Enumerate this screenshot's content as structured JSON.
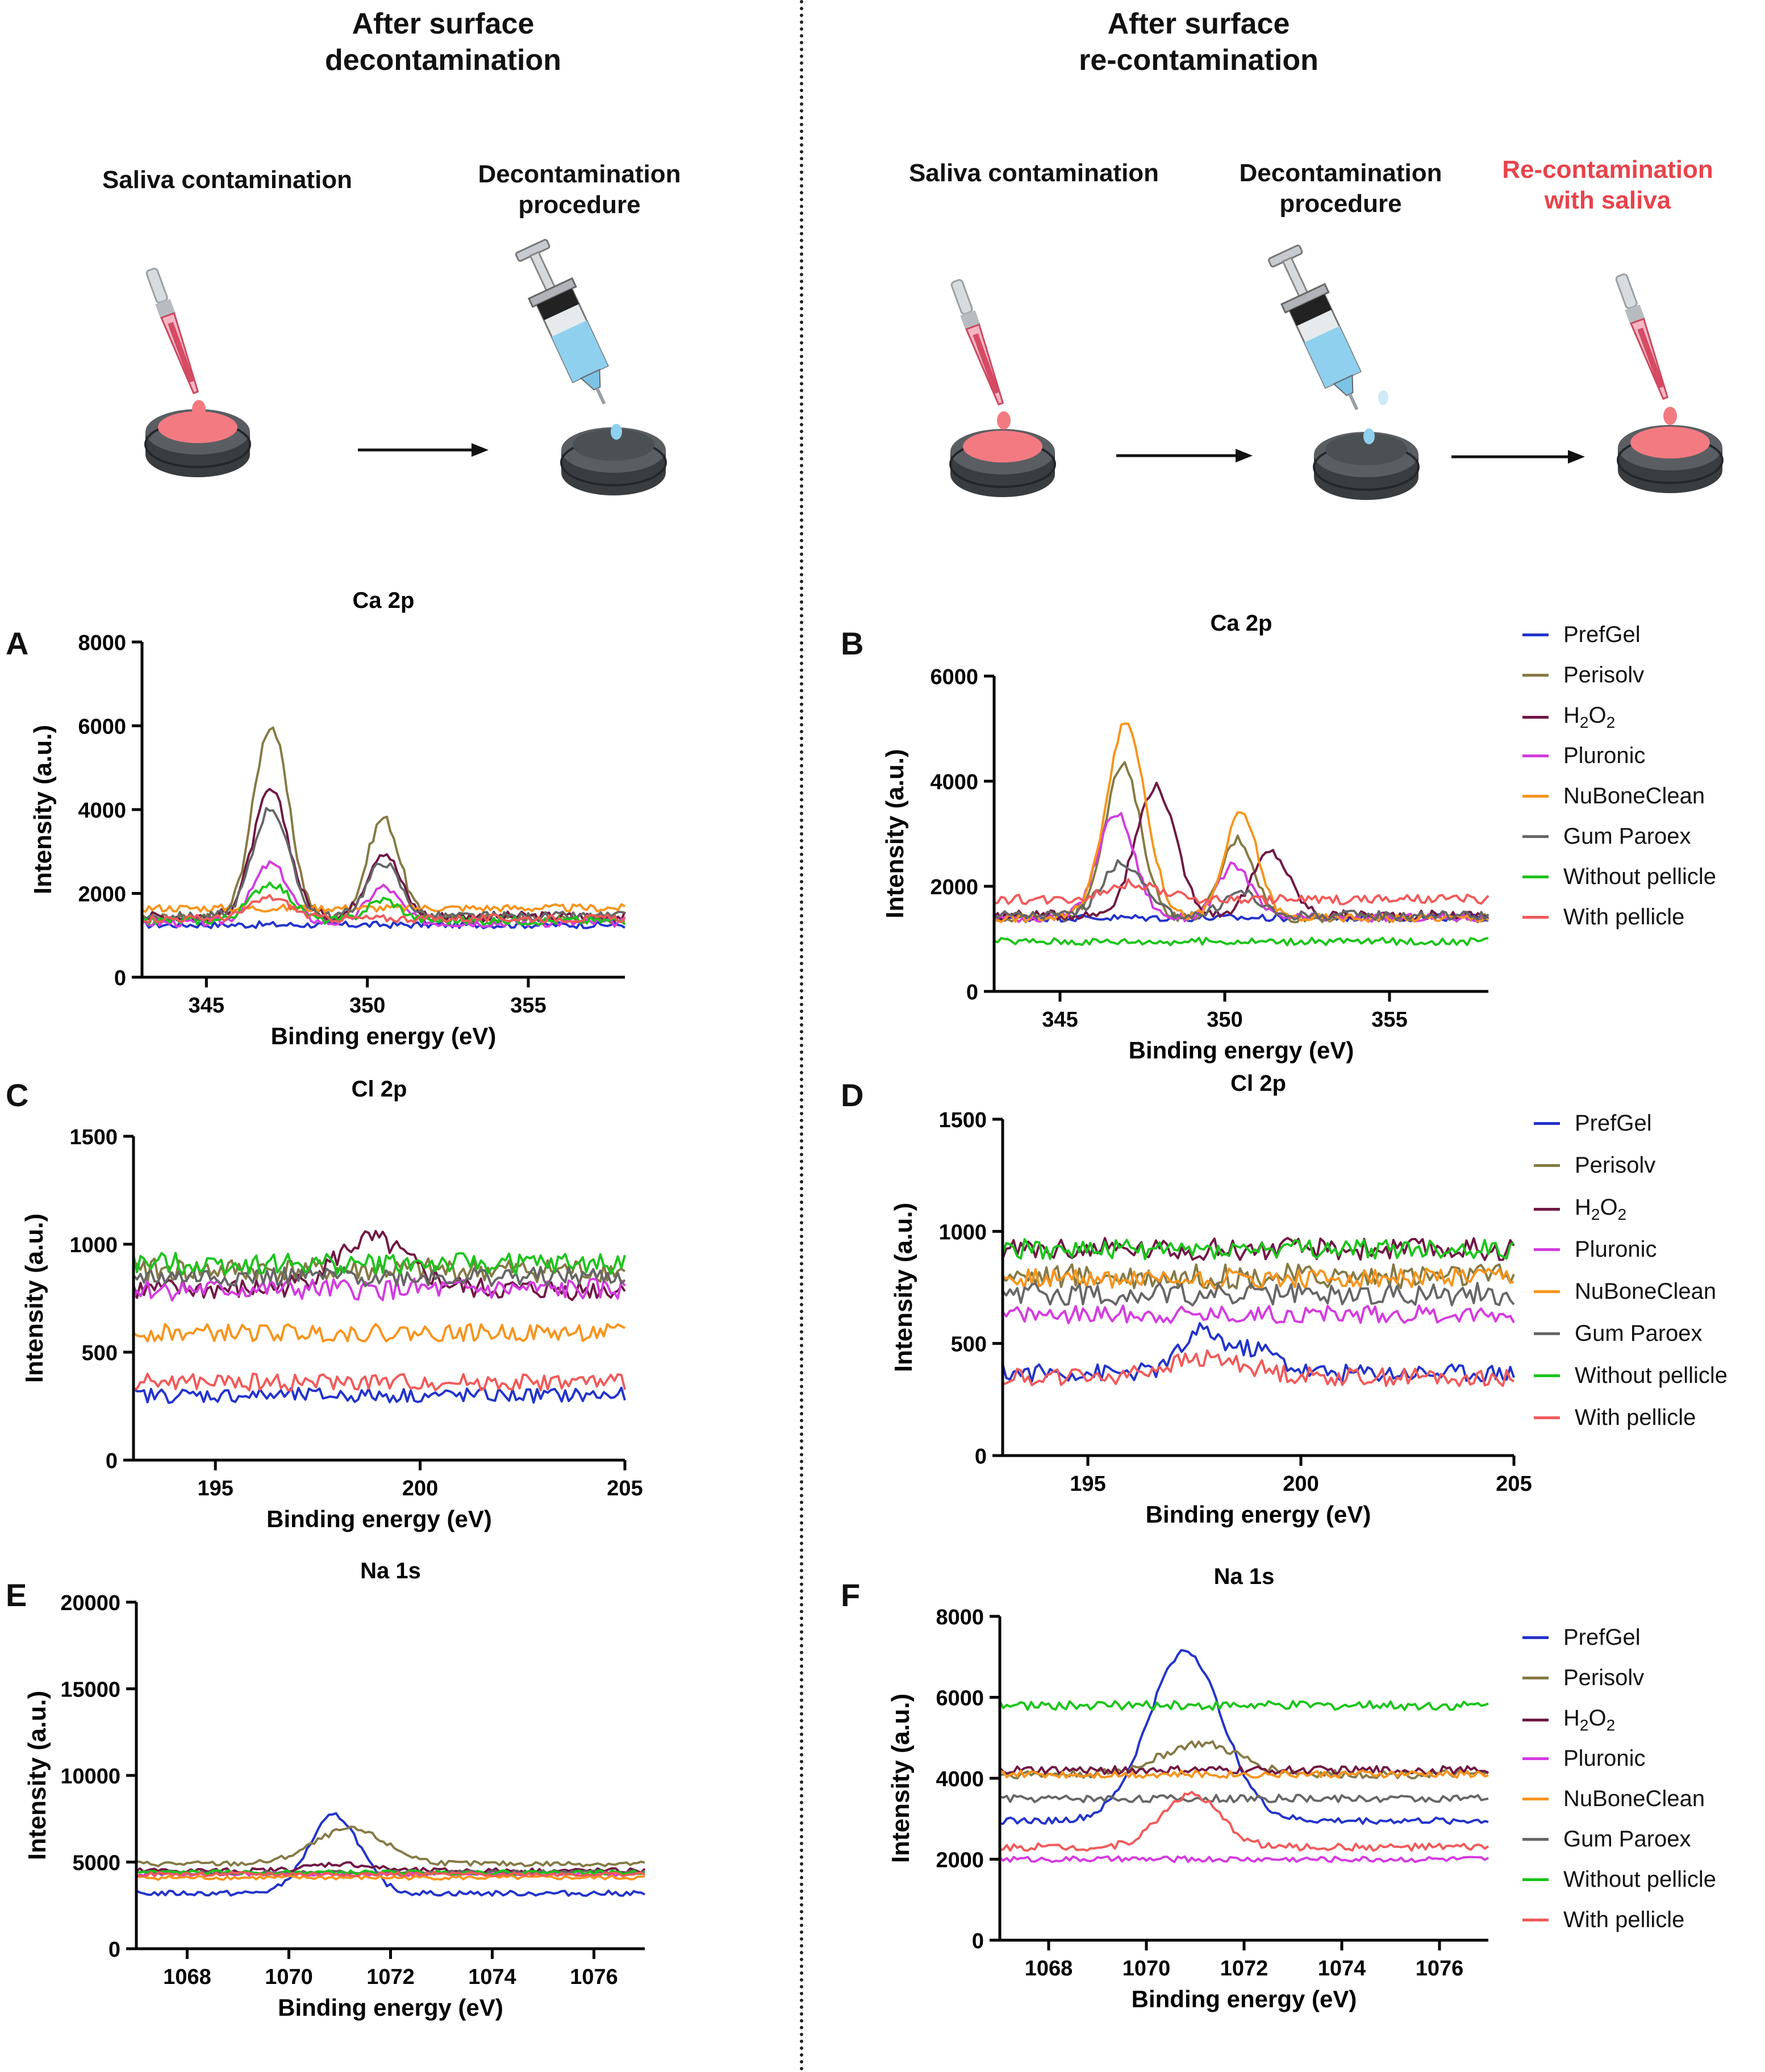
{
  "left_column": {
    "title_line1": "After surface",
    "title_line2": "decontamination",
    "steps": [
      {
        "line1": "Saliva contamination",
        "line2": ""
      },
      {
        "line1": "Decontamination",
        "line2": "procedure"
      }
    ]
  },
  "right_column": {
    "title_line1": "After surface",
    "title_line2": "re-contamination",
    "steps": [
      {
        "line1": "Saliva contamination",
        "line2": ""
      },
      {
        "line1": "Decontamination",
        "line2": "procedure"
      },
      {
        "line1": "Re-contamination",
        "line2": "with saliva"
      }
    ]
  },
  "legend": {
    "items": [
      {
        "label": "PrefGel",
        "color": "#2233cc"
      },
      {
        "label": "Perisolv",
        "color": "#857a45"
      },
      {
        "label": "H2O2",
        "color": "#701845"
      },
      {
        "label": "Pluronic",
        "color": "#d43be0"
      },
      {
        "label": "NuBoneClean",
        "color": "#f7941d"
      },
      {
        "label": "Gum Paroex",
        "color": "#666666"
      },
      {
        "label": "Without pellicle",
        "color": "#1bc41b"
      },
      {
        "label": "With pellicle",
        "color": "#f25a5a"
      }
    ]
  },
  "chart_data": [
    {
      "panel": "A",
      "type": "line",
      "title": "Ca 2p",
      "xlabel": "Binding energy (eV)",
      "ylabel": "Intensity (a.u.)",
      "xlim": [
        343,
        358
      ],
      "ylim": [
        0,
        8000
      ],
      "xticks": [
        345,
        350,
        355
      ],
      "yticks": [
        0,
        2000,
        4000,
        6000,
        8000
      ],
      "series": [
        {
          "name": "PrefGel",
          "baseline": 1250,
          "noise": 80,
          "peaks": []
        },
        {
          "name": "Perisolv",
          "baseline": 1400,
          "noise": 120,
          "peaks": [
            [
              347,
              4600,
              0.55
            ],
            [
              350.5,
              2400,
              0.5
            ]
          ]
        },
        {
          "name": "H2O2",
          "baseline": 1450,
          "noise": 120,
          "peaks": [
            [
              347,
              3000,
              0.55
            ],
            [
              350.5,
              1550,
              0.5
            ]
          ]
        },
        {
          "name": "Pluronic",
          "baseline": 1300,
          "noise": 100,
          "peaks": [
            [
              347,
              1400,
              0.55
            ],
            [
              350.5,
              850,
              0.5
            ]
          ]
        },
        {
          "name": "NuBoneClean",
          "baseline": 1650,
          "noise": 90,
          "peaks": []
        },
        {
          "name": "Gum Paroex",
          "baseline": 1450,
          "noise": 110,
          "peaks": [
            [
              347,
              2600,
              0.55
            ],
            [
              350.5,
              1300,
              0.5
            ]
          ]
        },
        {
          "name": "Without pellicle",
          "baseline": 1350,
          "noise": 100,
          "peaks": [
            [
              347,
              900,
              0.6
            ],
            [
              350.5,
              500,
              0.5
            ]
          ]
        },
        {
          "name": "With pellicle",
          "baseline": 1400,
          "noise": 90,
          "peaks": [
            [
              347,
              500,
              0.6
            ]
          ]
        }
      ]
    },
    {
      "panel": "B",
      "type": "line",
      "title": "Ca 2p",
      "xlabel": "Binding energy (eV)",
      "ylabel": "Intensity (a.u.)",
      "xlim": [
        343,
        358
      ],
      "ylim": [
        0,
        6000
      ],
      "xticks": [
        345,
        350,
        355
      ],
      "yticks": [
        0,
        2000,
        4000,
        6000
      ],
      "series": [
        {
          "name": "PrefGel",
          "baseline": 1400,
          "noise": 70,
          "peaks": []
        },
        {
          "name": "Perisolv",
          "baseline": 1400,
          "noise": 90,
          "peaks": [
            [
              346.9,
              2900,
              0.55
            ],
            [
              350.4,
              1500,
              0.5
            ]
          ]
        },
        {
          "name": "H2O2",
          "baseline": 1450,
          "noise": 90,
          "peaks": [
            [
              347.9,
              2450,
              0.6
            ],
            [
              351.4,
              1200,
              0.55
            ]
          ]
        },
        {
          "name": "Pluronic",
          "baseline": 1400,
          "noise": 80,
          "peaks": [
            [
              346.7,
              2000,
              0.55
            ],
            [
              350.3,
              1000,
              0.5
            ]
          ]
        },
        {
          "name": "NuBoneClean",
          "baseline": 1400,
          "noise": 80,
          "peaks": [
            [
              347,
              3700,
              0.6
            ],
            [
              350.5,
              2000,
              0.5
            ]
          ]
        },
        {
          "name": "Gum Paroex",
          "baseline": 1450,
          "noise": 90,
          "peaks": [
            [
              346.9,
              1000,
              0.6
            ],
            [
              350.5,
              450,
              0.5
            ]
          ]
        },
        {
          "name": "Without pellicle",
          "baseline": 950,
          "noise": 70,
          "peaks": []
        },
        {
          "name": "With pellicle",
          "baseline": 1750,
          "noise": 90,
          "peaks": [
            [
              347.2,
              300,
              0.8
            ]
          ]
        }
      ]
    },
    {
      "panel": "C",
      "type": "line",
      "title": "Cl 2p",
      "xlabel": "Binding energy (eV)",
      "ylabel": "Intensity (a.u.)",
      "xlim": [
        193,
        205
      ],
      "ylim": [
        0,
        1500
      ],
      "xticks": [
        195,
        200,
        205
      ],
      "yticks": [
        0,
        500,
        1000,
        1500
      ],
      "series": [
        {
          "name": "PrefGel",
          "baseline": 300,
          "noise": 35,
          "peaks": []
        },
        {
          "name": "Perisolv",
          "baseline": 880,
          "noise": 55,
          "peaks": []
        },
        {
          "name": "H2O2",
          "baseline": 790,
          "noise": 50,
          "peaks": [
            [
              198.8,
              230,
              0.9
            ]
          ]
        },
        {
          "name": "Pluronic",
          "baseline": 790,
          "noise": 50,
          "peaks": []
        },
        {
          "name": "NuBoneClean",
          "baseline": 590,
          "noise": 40,
          "peaks": []
        },
        {
          "name": "Gum Paroex",
          "baseline": 850,
          "noise": 45,
          "peaks": []
        },
        {
          "name": "Without pellicle",
          "baseline": 910,
          "noise": 50,
          "peaks": []
        },
        {
          "name": "With pellicle",
          "baseline": 360,
          "noise": 40,
          "peaks": []
        }
      ]
    },
    {
      "panel": "D",
      "type": "line",
      "title": "Cl 2p",
      "xlabel": "Binding energy (eV)",
      "ylabel": "Intensity (a.u.)",
      "xlim": [
        193,
        205
      ],
      "ylim": [
        0,
        1500
      ],
      "xticks": [
        195,
        200,
        205
      ],
      "yticks": [
        0,
        500,
        1000,
        1500
      ],
      "series": [
        {
          "name": "PrefGel",
          "baseline": 370,
          "noise": 40,
          "peaks": [
            [
              197.7,
              180,
              0.5
            ],
            [
              199,
              100,
              0.5
            ]
          ]
        },
        {
          "name": "Perisolv",
          "baseline": 800,
          "noise": 55,
          "peaks": []
        },
        {
          "name": "H2O2",
          "baseline": 920,
          "noise": 50,
          "peaks": []
        },
        {
          "name": "Pluronic",
          "baseline": 630,
          "noise": 40,
          "peaks": []
        },
        {
          "name": "NuBoneClean",
          "baseline": 790,
          "noise": 45,
          "peaks": []
        },
        {
          "name": "Gum Paroex",
          "baseline": 720,
          "noise": 50,
          "peaks": []
        },
        {
          "name": "Without pellicle",
          "baseline": 920,
          "noise": 45,
          "peaks": []
        },
        {
          "name": "With pellicle",
          "baseline": 350,
          "noise": 40,
          "peaks": [
            [
              197.8,
              80,
              1.0
            ]
          ]
        }
      ]
    },
    {
      "panel": "E",
      "type": "line",
      "title": "Na 1s",
      "xlabel": "Binding energy (eV)",
      "ylabel": "Intensity (a.u.)",
      "xlim": [
        1067,
        1077
      ],
      "ylim": [
        0,
        20000
      ],
      "xticks": [
        1068,
        1070,
        1072,
        1074,
        1076
      ],
      "yticks": [
        0,
        5000,
        10000,
        15000,
        20000
      ],
      "series": [
        {
          "name": "PrefGel",
          "baseline": 3200,
          "noise": 150,
          "peaks": [
            [
              1070.9,
              4500,
              0.5
            ]
          ]
        },
        {
          "name": "Perisolv",
          "baseline": 4900,
          "noise": 150,
          "peaks": [
            [
              1071.2,
              2000,
              0.7
            ]
          ]
        },
        {
          "name": "H2O2",
          "baseline": 4500,
          "noise": 150,
          "peaks": [
            [
              1071,
              400,
              0.6
            ]
          ]
        },
        {
          "name": "Pluronic",
          "baseline": 4300,
          "noise": 120,
          "peaks": []
        },
        {
          "name": "NuBoneClean",
          "baseline": 4100,
          "noise": 120,
          "peaks": []
        },
        {
          "name": "Gum Paroex",
          "baseline": 4400,
          "noise": 120,
          "peaks": []
        },
        {
          "name": "Without pellicle",
          "baseline": 4400,
          "noise": 120,
          "peaks": []
        },
        {
          "name": "With pellicle",
          "baseline": 4300,
          "noise": 120,
          "peaks": []
        }
      ]
    },
    {
      "panel": "F",
      "type": "line",
      "title": "Na 1s",
      "xlabel": "Binding energy (eV)",
      "ylabel": "Intensity (a.u.)",
      "xlim": [
        1067,
        1077
      ],
      "ylim": [
        0,
        8000
      ],
      "xticks": [
        1068,
        1070,
        1072,
        1074,
        1076
      ],
      "yticks": [
        0,
        2000,
        4000,
        6000,
        8000
      ],
      "series": [
        {
          "name": "PrefGel",
          "baseline": 2950,
          "noise": 80,
          "peaks": [
            [
              1070.8,
              4200,
              0.75
            ]
          ]
        },
        {
          "name": "Perisolv",
          "baseline": 4100,
          "noise": 100,
          "peaks": [
            [
              1071.1,
              750,
              0.8
            ]
          ]
        },
        {
          "name": "H2O2",
          "baseline": 4200,
          "noise": 100,
          "peaks": []
        },
        {
          "name": "Pluronic",
          "baseline": 2000,
          "noise": 70,
          "peaks": []
        },
        {
          "name": "NuBoneClean",
          "baseline": 4100,
          "noise": 90,
          "peaks": []
        },
        {
          "name": "Gum Paroex",
          "baseline": 3500,
          "noise": 90,
          "peaks": []
        },
        {
          "name": "Without pellicle",
          "baseline": 5800,
          "noise": 110,
          "peaks": []
        },
        {
          "name": "With pellicle",
          "baseline": 2300,
          "noise": 90,
          "peaks": [
            [
              1070.9,
              1300,
              0.6
            ]
          ]
        }
      ]
    }
  ]
}
